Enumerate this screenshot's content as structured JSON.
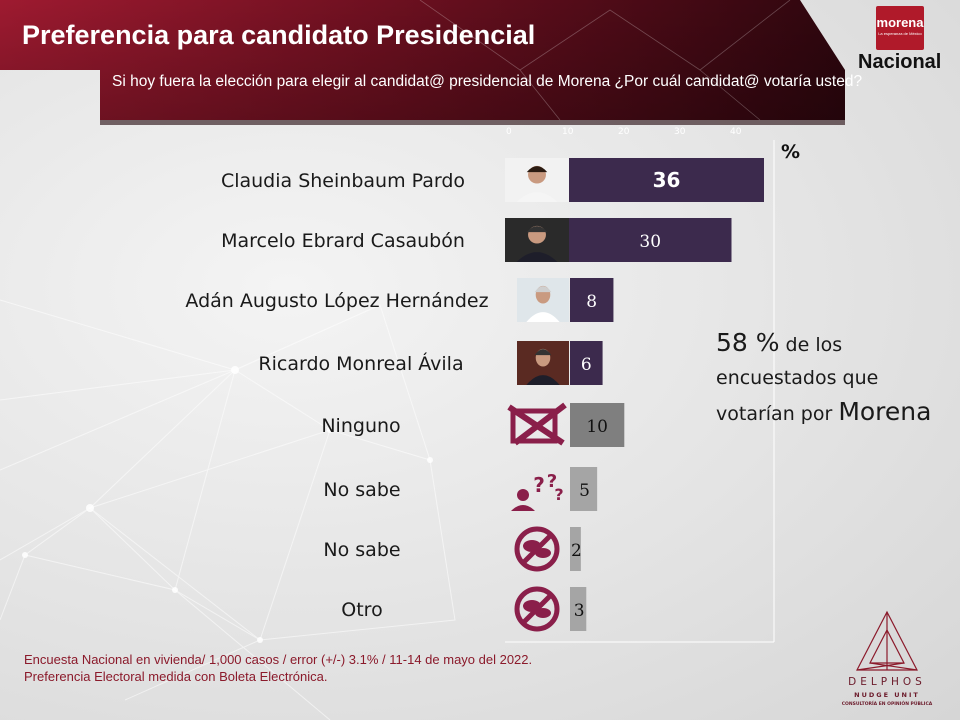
{
  "header": {
    "title": "Preferencia para candidato Presidencial",
    "question": "Si hoy fuera la elección para elegir al candidat@ presidencial de Morena  ¿Por cuál candidat@  votaría usted?",
    "badge": "Nacional",
    "logo": {
      "text": "morena",
      "tagline": "La esperanza de México"
    }
  },
  "colors": {
    "header_red": "#9e1a30",
    "header_dark": "#3e0a14",
    "bar_candidate": "#3c2a4d",
    "bar_other": "#7f7f7f",
    "bar_light": "#a5a5a5",
    "icon_maroon": "#8a1f4a"
  },
  "chart_data": {
    "type": "bar",
    "orientation": "horizontal",
    "unit_label": "%",
    "categories": [
      "Claudia Sheinbaum Pardo",
      "Marcelo Ebrard Casaubón",
      "Adán Augusto López Hernández",
      "Ricardo Monreal Ávila",
      "Ninguno",
      "No sabe",
      "No sabe",
      "Otro"
    ],
    "values": [
      36,
      30,
      8,
      6,
      10,
      5,
      2,
      3
    ],
    "axis_ticks": [
      "0",
      "10",
      "20",
      "30",
      "40"
    ],
    "icons": [
      "photo-icon",
      "photo-icon",
      "photo-icon",
      "photo-icon",
      "crossed-box-icon",
      "question-head-icon",
      "no-talking-icon",
      "no-talking-icon"
    ],
    "xlim": [
      0,
      40
    ]
  },
  "callout": {
    "big_number": "58 %",
    "line1_rest": " de los",
    "line2": "encuestados que",
    "line3_prefix": "votarían por ",
    "party": "Morena"
  },
  "footnote": {
    "line1": "Encuesta Nacional en vivienda/ 1,000 casos / error (+/-) 3.1% / 11-14 de mayo del 2022.",
    "line2": "Preferencia Electoral medida con Boleta Electrónica."
  },
  "brand": {
    "name": "DELPHOS",
    "sub": "NUDGE UNIT",
    "tag": "CONSULTORÍA EN OPINIÓN PÚBLICA"
  }
}
